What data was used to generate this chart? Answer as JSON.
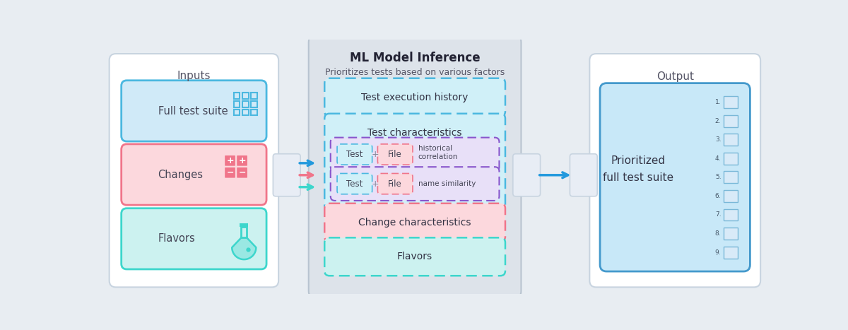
{
  "bg_color": "#e8edf2",
  "title": "ML Model Inference",
  "subtitle": "Prioritizes tests based on various factors",
  "inputs_label": "Inputs",
  "output_label": "Output",
  "output_label2": "Prioritized\nfull test suite",
  "arrow_blue": "#2299dd",
  "arrow_red": "#f0758a",
  "arrow_teal": "#3dd6cc",
  "connector_color": "#c8d4e0",
  "grid_color": "#4bb8e0",
  "changes_color": "#f0758a",
  "flask_color": "#3dd6cc"
}
